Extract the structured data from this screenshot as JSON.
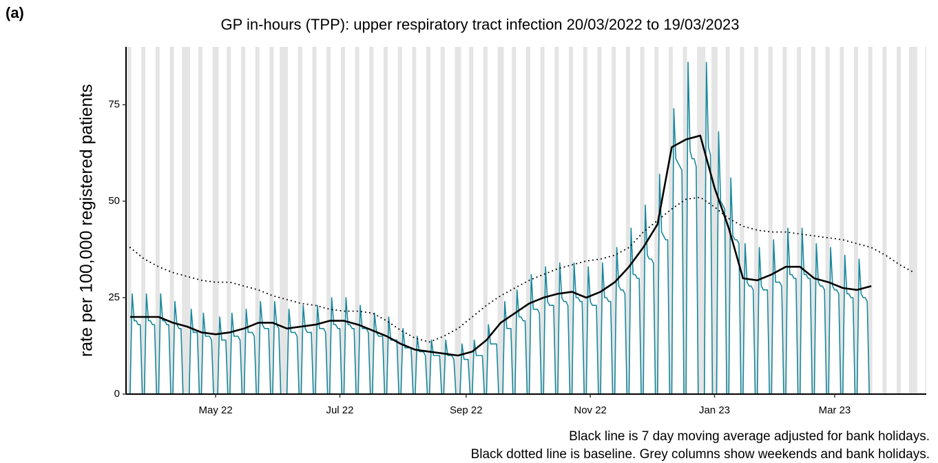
{
  "panel_label": "(a)",
  "chart_data": {
    "type": "line",
    "title": "GP in-hours (TPP): upper respiratory tract infection 20/03/2022 to 19/03/2023",
    "y_label": "rate per 100,000 registered patients",
    "notes": [
      "Black line is 7 day moving average adjusted for bank holidays.",
      "Black dotted line is baseline. Grey columns show weekends and bank holidays."
    ],
    "xlim": [
      "2022-03-18",
      "2023-04-15"
    ],
    "xticks": [
      {
        "value": "2022-05-01",
        "label": "May 22"
      },
      {
        "value": "2022-07-01",
        "label": "Jul 22"
      },
      {
        "value": "2022-09-01",
        "label": "Sep 22"
      },
      {
        "value": "2022-11-01",
        "label": "Nov 22"
      },
      {
        "value": "2023-01-01",
        "label": "Jan 23"
      },
      {
        "value": "2023-03-01",
        "label": "Mar 23"
      }
    ],
    "ylim": [
      0,
      90
    ],
    "yticks": [
      0,
      25,
      50,
      75
    ],
    "shade_weekends": true,
    "shade_color": "#e4e4e4",
    "bank_holidays": [
      "2022-04-15",
      "2022-04-18",
      "2022-05-02",
      "2022-06-02",
      "2022-06-03",
      "2022-08-29",
      "2022-09-19",
      "2022-12-26",
      "2022-12-27",
      "2023-01-02",
      "2023-04-07",
      "2023-04-10"
    ],
    "x": [
      "2022-03-20",
      "2022-03-21",
      "2022-03-22",
      "2022-03-23",
      "2022-03-24",
      "2022-03-25",
      "2022-03-26",
      "2022-03-27",
      "2022-03-28",
      "2022-03-29",
      "2022-03-30",
      "2022-03-31",
      "2022-04-01",
      "2022-04-02",
      "2022-04-03",
      "2022-04-04",
      "2022-04-05",
      "2022-04-06",
      "2022-04-07",
      "2022-04-08",
      "2022-04-09",
      "2022-04-10",
      "2022-04-11",
      "2022-04-12",
      "2022-04-13",
      "2022-04-14",
      "2022-04-15",
      "2022-04-16",
      "2022-04-17",
      "2022-04-18",
      "2022-04-19",
      "2022-04-20",
      "2022-04-21",
      "2022-04-22",
      "2022-04-23",
      "2022-04-24",
      "2022-04-25",
      "2022-04-26",
      "2022-04-27",
      "2022-04-28",
      "2022-04-29",
      "2022-04-30",
      "2022-05-01",
      "2022-05-02",
      "2022-05-03",
      "2022-05-04",
      "2022-05-05",
      "2022-05-06",
      "2022-05-07",
      "2022-05-08",
      "2022-05-09",
      "2022-05-10",
      "2022-05-11",
      "2022-05-12",
      "2022-05-13",
      "2022-05-14",
      "2022-05-15",
      "2022-05-16",
      "2022-05-17",
      "2022-05-18",
      "2022-05-19",
      "2022-05-20",
      "2022-05-21",
      "2022-05-22",
      "2022-05-23",
      "2022-05-24",
      "2022-05-25",
      "2022-05-26",
      "2022-05-27",
      "2022-05-28",
      "2022-05-29",
      "2022-05-30",
      "2022-05-31",
      "2022-06-01",
      "2022-06-02",
      "2022-06-03",
      "2022-06-04",
      "2022-06-05",
      "2022-06-06",
      "2022-06-07",
      "2022-06-08",
      "2022-06-09",
      "2022-06-10",
      "2022-06-11",
      "2022-06-12",
      "2022-06-13",
      "2022-06-14",
      "2022-06-15",
      "2022-06-16",
      "2022-06-17",
      "2022-06-18",
      "2022-06-19",
      "2022-06-20",
      "2022-06-21",
      "2022-06-22",
      "2022-06-23",
      "2022-06-24",
      "2022-06-25",
      "2022-06-26",
      "2022-06-27",
      "2022-06-28",
      "2022-06-29",
      "2022-06-30",
      "2022-07-01",
      "2022-07-02",
      "2022-07-03",
      "2022-07-04",
      "2022-07-05",
      "2022-07-06",
      "2022-07-07",
      "2022-07-08",
      "2022-07-09",
      "2022-07-10",
      "2022-07-11",
      "2022-07-12",
      "2022-07-13",
      "2022-07-14",
      "2022-07-15",
      "2022-07-16",
      "2022-07-17",
      "2022-07-18",
      "2022-07-19",
      "2022-07-20",
      "2022-07-21",
      "2022-07-22",
      "2022-07-23",
      "2022-07-24",
      "2022-07-25",
      "2022-07-26",
      "2022-07-27",
      "2022-07-28",
      "2022-07-29",
      "2022-07-30",
      "2022-07-31",
      "2022-08-01",
      "2022-08-02",
      "2022-08-03",
      "2022-08-04",
      "2022-08-05",
      "2022-08-06",
      "2022-08-07",
      "2022-08-08",
      "2022-08-09",
      "2022-08-10",
      "2022-08-11",
      "2022-08-12",
      "2022-08-13",
      "2022-08-14",
      "2022-08-15",
      "2022-08-16",
      "2022-08-17",
      "2022-08-18",
      "2022-08-19",
      "2022-08-20",
      "2022-08-21",
      "2022-08-22",
      "2022-08-23",
      "2022-08-24",
      "2022-08-25",
      "2022-08-26",
      "2022-08-27",
      "2022-08-28",
      "2022-08-29",
      "2022-08-30",
      "2022-08-31",
      "2022-09-01",
      "2022-09-02",
      "2022-09-03",
      "2022-09-04",
      "2022-09-05",
      "2022-09-06",
      "2022-09-07",
      "2022-09-08",
      "2022-09-09",
      "2022-09-10",
      "2022-09-11",
      "2022-09-12",
      "2022-09-13",
      "2022-09-14",
      "2022-09-15",
      "2022-09-16",
      "2022-09-17",
      "2022-09-18",
      "2022-09-19",
      "2022-09-20",
      "2022-09-21",
      "2022-09-22",
      "2022-09-23",
      "2022-09-24",
      "2022-09-25",
      "2022-09-26",
      "2022-09-27",
      "2022-09-28",
      "2022-09-29",
      "2022-09-30",
      "2022-10-01",
      "2022-10-02",
      "2022-10-03",
      "2022-10-04",
      "2022-10-05",
      "2022-10-06",
      "2022-10-07",
      "2022-10-08",
      "2022-10-09",
      "2022-10-10",
      "2022-10-11",
      "2022-10-12",
      "2022-10-13",
      "2022-10-14",
      "2022-10-15",
      "2022-10-16",
      "2022-10-17",
      "2022-10-18",
      "2022-10-19",
      "2022-10-20",
      "2022-10-21",
      "2022-10-22",
      "2022-10-23",
      "2022-10-24",
      "2022-10-25",
      "2022-10-26",
      "2022-10-27",
      "2022-10-28",
      "2022-10-29",
      "2022-10-30",
      "2022-10-31",
      "2022-11-01",
      "2022-11-02",
      "2022-11-03",
      "2022-11-04",
      "2022-11-05",
      "2022-11-06",
      "2022-11-07",
      "2022-11-08",
      "2022-11-09",
      "2022-11-10",
      "2022-11-11",
      "2022-11-12",
      "2022-11-13",
      "2022-11-14",
      "2022-11-15",
      "2022-11-16",
      "2022-11-17",
      "2022-11-18",
      "2022-11-19",
      "2022-11-20",
      "2022-11-21",
      "2022-11-22",
      "2022-11-23",
      "2022-11-24",
      "2022-11-25",
      "2022-11-26",
      "2022-11-27",
      "2022-11-28",
      "2022-11-29",
      "2022-11-30",
      "2022-12-01",
      "2022-12-02",
      "2022-12-03",
      "2022-12-04",
      "2022-12-05",
      "2022-12-06",
      "2022-12-07",
      "2022-12-08",
      "2022-12-09",
      "2022-12-10",
      "2022-12-11",
      "2022-12-12",
      "2022-12-13",
      "2022-12-14",
      "2022-12-15",
      "2022-12-16",
      "2022-12-17",
      "2022-12-18",
      "2022-12-19",
      "2022-12-20",
      "2022-12-21",
      "2022-12-22",
      "2022-12-23",
      "2022-12-24",
      "2022-12-25",
      "2022-12-26",
      "2022-12-27",
      "2022-12-28",
      "2022-12-29",
      "2022-12-30",
      "2022-12-31",
      "2023-01-01",
      "2023-01-02",
      "2023-01-03",
      "2023-01-04",
      "2023-01-05",
      "2023-01-06",
      "2023-01-07",
      "2023-01-08",
      "2023-01-09",
      "2023-01-10",
      "2023-01-11",
      "2023-01-12",
      "2023-01-13",
      "2023-01-14",
      "2023-01-15",
      "2023-01-16",
      "2023-01-17",
      "2023-01-18",
      "2023-01-19",
      "2023-01-20",
      "2023-01-21",
      "2023-01-22",
      "2023-01-23",
      "2023-01-24",
      "2023-01-25",
      "2023-01-26",
      "2023-01-27",
      "2023-01-28",
      "2023-01-29",
      "2023-01-30",
      "2023-01-31",
      "2023-02-01",
      "2023-02-02",
      "2023-02-03",
      "2023-02-04",
      "2023-02-05",
      "2023-02-06",
      "2023-02-07",
      "2023-02-08",
      "2023-02-09",
      "2023-02-10",
      "2023-02-11",
      "2023-02-12",
      "2023-02-13",
      "2023-02-14",
      "2023-02-15",
      "2023-02-16",
      "2023-02-17",
      "2023-02-18",
      "2023-02-19",
      "2023-02-20",
      "2023-02-21",
      "2023-02-22",
      "2023-02-23",
      "2023-02-24",
      "2023-02-25",
      "2023-02-26",
      "2023-02-27",
      "2023-02-28",
      "2023-03-01",
      "2023-03-02",
      "2023-03-03",
      "2023-03-04",
      "2023-03-05",
      "2023-03-06",
      "2023-03-07",
      "2023-03-08",
      "2023-03-09",
      "2023-03-10",
      "2023-03-11",
      "2023-03-12",
      "2023-03-13",
      "2023-03-14",
      "2023-03-15",
      "2023-03-16",
      "2023-03-17",
      "2023-03-18",
      "2023-03-19"
    ],
    "series": [
      {
        "color": "#17879c",
        "width": 1.6,
        "dash": "solid",
        "values": [
          0,
          26,
          19,
          19,
          18,
          18,
          0,
          0,
          26,
          19,
          19,
          18,
          18,
          0,
          0,
          26,
          19,
          19,
          18,
          18,
          0,
          0,
          24,
          18,
          17,
          17,
          0,
          0,
          0,
          0,
          22,
          16,
          16,
          16,
          0,
          0,
          21,
          15,
          15,
          15,
          14,
          0,
          0,
          0,
          20,
          14,
          14,
          14,
          0,
          0,
          21,
          15,
          15,
          15,
          14,
          0,
          0,
          22,
          16,
          16,
          16,
          15,
          0,
          0,
          24,
          18,
          17,
          17,
          17,
          0,
          0,
          24,
          18,
          17,
          0,
          0,
          0,
          0,
          22,
          16,
          16,
          16,
          15,
          0,
          0,
          23,
          17,
          16,
          16,
          16,
          0,
          0,
          23,
          17,
          17,
          17,
          16,
          0,
          0,
          25,
          18,
          18,
          17,
          17,
          0,
          0,
          25,
          18,
          18,
          17,
          17,
          0,
          0,
          23,
          17,
          17,
          17,
          16,
          0,
          0,
          21,
          16,
          15,
          15,
          15,
          0,
          0,
          20,
          14,
          14,
          14,
          14,
          0,
          0,
          17,
          12,
          12,
          12,
          12,
          0,
          0,
          15,
          11,
          11,
          11,
          10,
          0,
          0,
          14,
          10,
          10,
          10,
          10,
          0,
          0,
          14,
          10,
          10,
          10,
          9,
          0,
          0,
          0,
          13,
          9,
          9,
          9,
          0,
          0,
          14,
          10,
          10,
          10,
          10,
          0,
          0,
          18,
          13,
          13,
          13,
          13,
          0,
          0,
          0,
          24,
          17,
          17,
          17,
          0,
          0,
          27,
          20,
          20,
          19,
          19,
          0,
          0,
          31,
          22,
          22,
          22,
          21,
          0,
          0,
          33,
          24,
          23,
          23,
          23,
          0,
          0,
          34,
          25,
          24,
          24,
          23,
          0,
          0,
          34,
          25,
          25,
          24,
          24,
          0,
          0,
          33,
          24,
          23,
          23,
          23,
          0,
          0,
          34,
          25,
          25,
          24,
          24,
          0,
          0,
          38,
          28,
          27,
          27,
          26,
          0,
          0,
          43,
          31,
          31,
          30,
          30,
          0,
          0,
          49,
          36,
          35,
          35,
          34,
          0,
          0,
          57,
          42,
          41,
          40,
          40,
          0,
          0,
          74,
          61,
          60,
          59,
          58,
          0,
          0,
          86,
          63,
          61,
          61,
          59,
          0,
          0,
          0,
          0,
          86,
          64,
          62,
          0,
          0,
          0,
          68,
          50,
          49,
          48,
          0,
          0,
          56,
          41,
          40,
          40,
          39,
          0,
          0,
          39,
          29,
          28,
          28,
          27,
          0,
          0,
          38,
          28,
          27,
          27,
          27,
          0,
          0,
          40,
          29,
          29,
          29,
          28,
          0,
          0,
          43,
          31,
          31,
          30,
          30,
          0,
          0,
          43,
          31,
          31,
          30,
          30,
          0,
          0,
          39,
          29,
          28,
          28,
          27,
          0,
          0,
          38,
          28,
          27,
          27,
          26,
          0,
          0,
          36,
          26,
          26,
          25,
          25,
          0,
          0,
          35,
          26,
          25,
          25,
          24,
          0,
          0
        ]
      },
      {
        "color": "#000000",
        "width": 2,
        "dash": "dotted",
        "x": [
          "2022-03-20",
          "2022-03-27",
          "2022-04-03",
          "2022-04-10",
          "2022-04-17",
          "2022-04-24",
          "2022-05-01",
          "2022-05-08",
          "2022-05-15",
          "2022-05-22",
          "2022-05-29",
          "2022-06-05",
          "2022-06-12",
          "2022-06-19",
          "2022-06-26",
          "2022-07-03",
          "2022-07-10",
          "2022-07-17",
          "2022-07-24",
          "2022-07-31",
          "2022-08-07",
          "2022-08-14",
          "2022-08-21",
          "2022-08-28",
          "2022-09-04",
          "2022-09-11",
          "2022-09-18",
          "2022-09-25",
          "2022-10-02",
          "2022-10-09",
          "2022-10-16",
          "2022-10-23",
          "2022-10-30",
          "2022-11-06",
          "2022-11-13",
          "2022-11-20",
          "2022-11-27",
          "2022-12-04",
          "2022-12-11",
          "2022-12-18",
          "2022-12-25",
          "2023-01-01",
          "2023-01-08",
          "2023-01-15",
          "2023-01-22",
          "2023-01-29",
          "2023-02-05",
          "2023-02-12",
          "2023-02-19",
          "2023-02-26",
          "2023-03-05",
          "2023-03-12",
          "2023-03-19",
          "2023-03-26",
          "2023-04-02",
          "2023-04-09"
        ],
        "values": [
          38,
          35,
          33,
          31.5,
          30.5,
          29.5,
          29,
          29,
          28,
          27,
          25.5,
          24.5,
          23.5,
          23,
          22,
          21.5,
          21.5,
          21,
          19,
          16.5,
          14.5,
          13.5,
          15,
          17,
          20,
          23,
          25.5,
          27.5,
          29.5,
          31,
          32.5,
          33.5,
          34.5,
          35,
          36,
          38,
          42,
          45,
          48,
          50.5,
          51,
          48.5,
          45.5,
          43.5,
          42.5,
          42,
          42,
          41.5,
          41,
          40.5,
          40,
          39,
          38,
          36,
          33.5,
          31.5
        ]
      },
      {
        "color": "#000000",
        "width": 2.6,
        "dash": "solid",
        "x": [
          "2022-03-20",
          "2022-03-27",
          "2022-04-03",
          "2022-04-10",
          "2022-04-17",
          "2022-04-24",
          "2022-05-01",
          "2022-05-08",
          "2022-05-15",
          "2022-05-22",
          "2022-05-29",
          "2022-06-05",
          "2022-06-12",
          "2022-06-19",
          "2022-06-26",
          "2022-07-03",
          "2022-07-10",
          "2022-07-17",
          "2022-07-24",
          "2022-07-31",
          "2022-08-07",
          "2022-08-14",
          "2022-08-21",
          "2022-08-28",
          "2022-09-04",
          "2022-09-11",
          "2022-09-18",
          "2022-09-25",
          "2022-10-02",
          "2022-10-09",
          "2022-10-16",
          "2022-10-23",
          "2022-10-30",
          "2022-11-06",
          "2022-11-13",
          "2022-11-20",
          "2022-11-27",
          "2022-12-04",
          "2022-12-11",
          "2022-12-18",
          "2022-12-25",
          "2023-01-01",
          "2023-01-08",
          "2023-01-15",
          "2023-01-22",
          "2023-01-29",
          "2023-02-05",
          "2023-02-12",
          "2023-02-19",
          "2023-02-26",
          "2023-03-05",
          "2023-03-12",
          "2023-03-19"
        ],
        "values": [
          20,
          20,
          20,
          18.5,
          17.5,
          16,
          15.5,
          16,
          17,
          18.5,
          18.5,
          17,
          17.5,
          18,
          19,
          19,
          18,
          16.5,
          15,
          13,
          11.5,
          11,
          10.5,
          10,
          11,
          14,
          18.5,
          21,
          23.5,
          25,
          26,
          26.5,
          25,
          26.5,
          29,
          33,
          38,
          44,
          64,
          66,
          67,
          53.5,
          43,
          30,
          29.5,
          31,
          33,
          33,
          30,
          29,
          27.5,
          27,
          28
        ]
      }
    ]
  }
}
